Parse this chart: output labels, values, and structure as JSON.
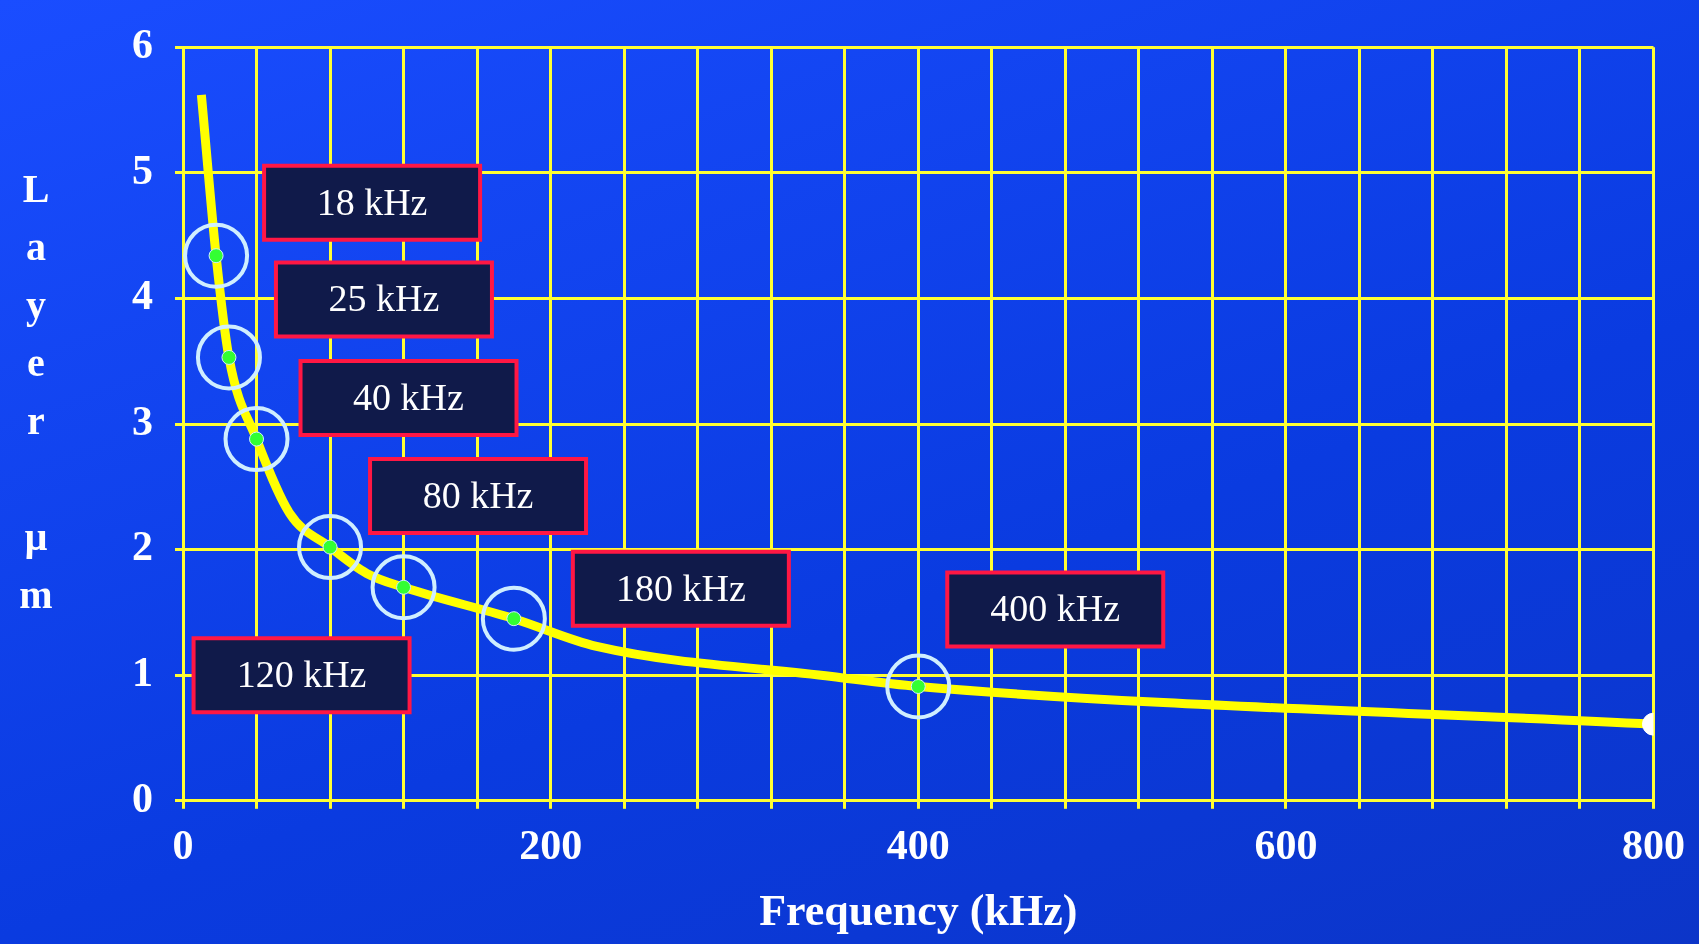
{
  "chart_data": {
    "type": "line",
    "xlabel": "Frequency (kHz)",
    "ylabel": "Layer µm",
    "xlim": [
      0,
      800
    ],
    "ylim": [
      0,
      6
    ],
    "xticks": [
      0,
      {
        "value": 40,
        "label": null
      },
      {
        "value": 80,
        "label": null
      },
      {
        "value": 120,
        "label": null
      },
      {
        "value": 160,
        "label": null
      },
      200,
      {
        "value": 240,
        "label": null
      },
      {
        "value": 280,
        "label": null
      },
      {
        "value": 320,
        "label": null
      },
      {
        "value": 360,
        "label": null
      },
      400,
      {
        "value": 440,
        "label": null
      },
      {
        "value": 480,
        "label": null
      },
      {
        "value": 520,
        "label": null
      },
      {
        "value": 560,
        "label": null
      },
      600,
      {
        "value": 640,
        "label": null
      },
      {
        "value": 680,
        "label": null
      },
      {
        "value": 720,
        "label": null
      },
      {
        "value": 760,
        "label": null
      },
      800
    ],
    "yticks": [
      0,
      1,
      2,
      3,
      4,
      5,
      6
    ],
    "grid": true,
    "legend": false,
    "series": [
      {
        "type": "line",
        "color": "#ffff00",
        "x": [
          10,
          18,
          25,
          40,
          58,
          80,
          100,
          120,
          180,
          225,
          353,
          400,
          800
        ],
        "values": [
          5.62,
          4.34,
          3.53,
          2.88,
          2.29,
          2.02,
          1.81,
          1.7,
          1.45,
          1.23,
          0.99,
          0.91,
          0.61
        ]
      },
      {
        "type": "scatter",
        "color": "#33ff33",
        "marker": "circle",
        "x": [
          18,
          25,
          40,
          80,
          120,
          180,
          400
        ],
        "values": [
          4.34,
          3.53,
          2.88,
          2.02,
          1.7,
          1.45,
          0.91
        ]
      },
      {
        "type": "scatter",
        "color": "#ffffff",
        "marker": "circle",
        "x": [
          800
        ],
        "values": [
          0.61
        ]
      }
    ],
    "annotations": [
      {
        "text": "18 kHz",
        "x": 18,
        "y": 4.34
      },
      {
        "text": "25 kHz",
        "x": 25,
        "y": 3.53
      },
      {
        "text": "40 kHz",
        "x": 40,
        "y": 2.88
      },
      {
        "text": "80 kHz",
        "x": 80,
        "y": 2.02
      },
      {
        "text": "120 kHz",
        "x": 120,
        "y": 1.7
      },
      {
        "text": "180 kHz",
        "x": 180,
        "y": 1.45
      },
      {
        "text": "400 kHz",
        "x": 400,
        "y": 0.91
      }
    ]
  }
}
